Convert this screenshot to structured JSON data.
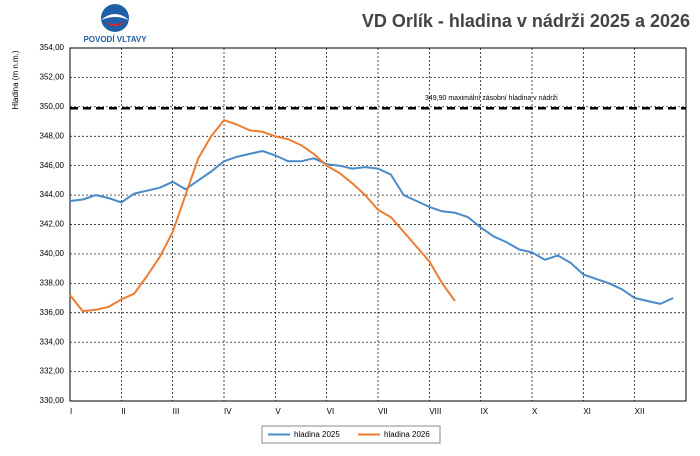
{
  "logo_text": "POVODÍ VLTAVY",
  "chart_data": {
    "type": "line",
    "title": "VD Orlík - hladina v nádrži 2025 a 2026",
    "y_label": "Hladina (m n.m.)",
    "categories": [
      "I",
      null,
      null,
      null,
      "II",
      null,
      null,
      null,
      "III",
      null,
      null,
      null,
      "IV",
      null,
      null,
      null,
      "V",
      null,
      null,
      null,
      "VI",
      null,
      null,
      null,
      "VII",
      null,
      null,
      null,
      "VIII",
      null,
      null,
      null,
      "IX",
      null,
      null,
      null,
      "X",
      null,
      null,
      null,
      "XI",
      null,
      null,
      null,
      "XII",
      null,
      null,
      null
    ],
    "series": [
      {
        "name": "hladina 2025",
        "color": "#4a8ac9",
        "values": [
          343.6,
          343.7,
          344.0,
          343.8,
          343.5,
          344.1,
          344.3,
          344.5,
          344.9,
          344.4,
          345.0,
          345.6,
          346.3,
          346.6,
          346.8,
          347.0,
          346.7,
          346.3,
          346.3,
          346.5,
          346.1,
          346.0,
          345.8,
          345.9,
          345.8,
          345.4,
          344.0,
          343.6,
          343.2,
          342.9,
          342.8,
          342.5,
          341.8,
          341.2,
          340.8,
          340.3,
          340.1,
          339.6,
          339.9,
          339.4,
          338.6,
          338.3,
          338.0,
          337.6,
          337.0,
          336.8,
          336.6,
          337.0
        ]
      },
      {
        "name": "hladina 2026",
        "color": "#ed7d31",
        "values": [
          337.2,
          336.1,
          336.2,
          336.4,
          336.9,
          337.3,
          338.5,
          339.8,
          341.5,
          344.0,
          346.5,
          348.0,
          349.1,
          348.8,
          348.4,
          348.3,
          348.0,
          347.8,
          347.4,
          346.8,
          346.0,
          345.5,
          344.8,
          344.0,
          343.0,
          342.5,
          341.5,
          340.5,
          339.5,
          338.0,
          336.8,
          null,
          null,
          null,
          null,
          null,
          null,
          null,
          null,
          null,
          null,
          null,
          null,
          null,
          null,
          null,
          null,
          null
        ]
      }
    ],
    "ylim": [
      330,
      354
    ],
    "yticks": [
      {
        "value": 330,
        "label": "330,00"
      },
      {
        "value": 332,
        "label": "332,00"
      },
      {
        "value": 334,
        "label": "334,00"
      },
      {
        "value": 336,
        "label": "336,00"
      },
      {
        "value": 338,
        "label": "338,00"
      },
      {
        "value": 340,
        "label": "340,00"
      },
      {
        "value": 342,
        "label": "342,00"
      },
      {
        "value": 344,
        "label": "344,00"
      },
      {
        "value": 346,
        "label": "346,00"
      },
      {
        "value": 348,
        "label": "348,00"
      },
      {
        "value": 350,
        "label": "350,00"
      },
      {
        "value": 352,
        "label": "352,00"
      },
      {
        "value": 354,
        "label": "354,00"
      }
    ],
    "reference_line": {
      "value": 349.9,
      "label": "349,90 maximální zásobní hladina v nádrži"
    },
    "grid": true
  }
}
